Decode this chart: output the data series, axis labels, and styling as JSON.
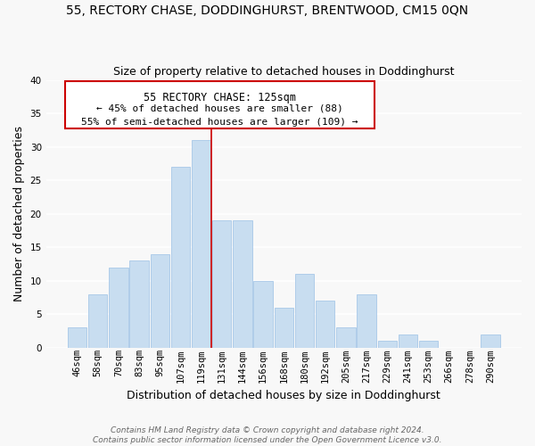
{
  "title": "55, RECTORY CHASE, DODDINGHURST, BRENTWOOD, CM15 0QN",
  "subtitle": "Size of property relative to detached houses in Doddinghurst",
  "xlabel": "Distribution of detached houses by size in Doddinghurst",
  "ylabel": "Number of detached properties",
  "bar_labels": [
    "46sqm",
    "58sqm",
    "70sqm",
    "83sqm",
    "95sqm",
    "107sqm",
    "119sqm",
    "131sqm",
    "144sqm",
    "156sqm",
    "168sqm",
    "180sqm",
    "192sqm",
    "205sqm",
    "217sqm",
    "229sqm",
    "241sqm",
    "253sqm",
    "266sqm",
    "278sqm",
    "290sqm"
  ],
  "bar_values": [
    3,
    8,
    12,
    13,
    14,
    27,
    31,
    19,
    19,
    10,
    6,
    11,
    7,
    3,
    8,
    1,
    2,
    1,
    0,
    0,
    2
  ],
  "bar_color": "#c8ddf0",
  "bar_edge_color": "#a8c8e8",
  "vline_x_index": 6.5,
  "vline_color": "#cc0000",
  "ylim": [
    0,
    40
  ],
  "yticks": [
    0,
    5,
    10,
    15,
    20,
    25,
    30,
    35,
    40
  ],
  "annotation_box_text_lines": [
    "55 RECTORY CHASE: 125sqm",
    "← 45% of detached houses are smaller (88)",
    "55% of semi-detached houses are larger (109) →"
  ],
  "footer_line1": "Contains HM Land Registry data © Crown copyright and database right 2024.",
  "footer_line2": "Contains public sector information licensed under the Open Government Licence v3.0.",
  "background_color": "#f8f8f8",
  "grid_color": "#ffffff",
  "title_fontsize": 10,
  "subtitle_fontsize": 9,
  "axis_label_fontsize": 9,
  "tick_fontsize": 7.5,
  "annotation_fontsize": 8.5,
  "footer_fontsize": 6.5
}
